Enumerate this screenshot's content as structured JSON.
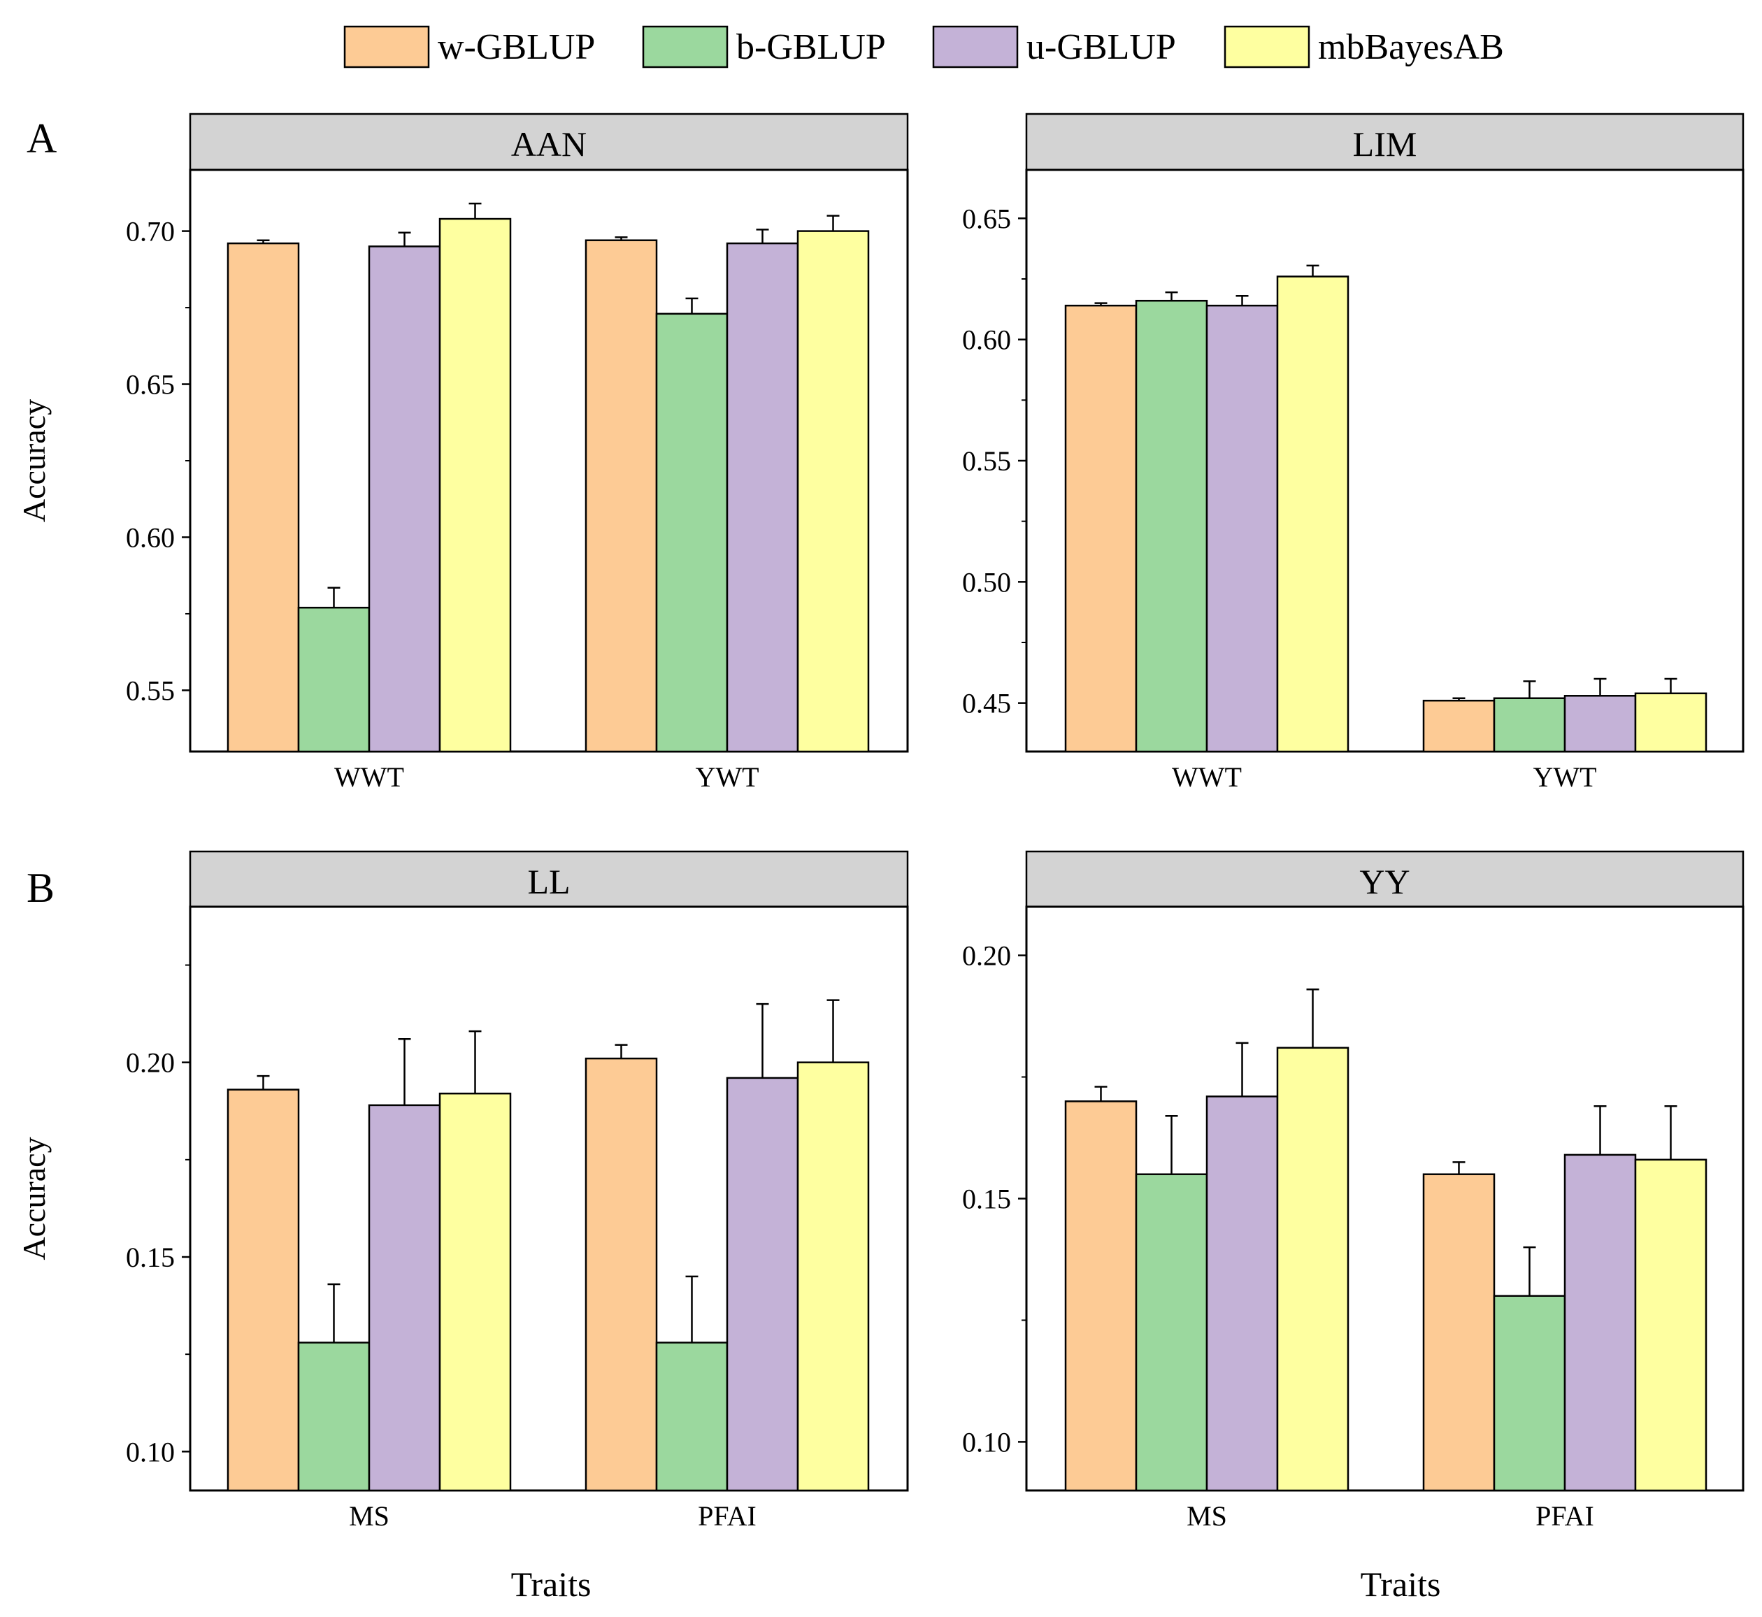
{
  "colors": {
    "w-GBLUP": "#FDCB95",
    "b-GBLUP": "#9BD89E",
    "u-GBLUP": "#C4B2D7",
    "mbBayesAB": "#FEFFA0",
    "strip": "#D3D3D3"
  },
  "legend": [
    "w-GBLUP",
    "b-GBLUP",
    "u-GBLUP",
    "mbBayesAB"
  ],
  "panel_letters": [
    "A",
    "B"
  ],
  "xlabel": "Traits",
  "chart_data": [
    {
      "type": "bar",
      "panel": "A",
      "title": "AAN",
      "ylabel": "Accuracy",
      "ylim": [
        0.53,
        0.72
      ],
      "yticks": [
        0.55,
        0.6,
        0.65,
        0.7
      ],
      "ytick_labels": [
        "0.55",
        "0.60",
        "0.65",
        "0.70"
      ],
      "categories": [
        "WWT",
        "YWT"
      ],
      "series": [
        {
          "name": "w-GBLUP",
          "values": [
            0.696,
            0.697
          ],
          "errors": [
            0.001,
            0.001
          ]
        },
        {
          "name": "b-GBLUP",
          "values": [
            0.577,
            0.673
          ],
          "errors": [
            0.0065,
            0.005
          ]
        },
        {
          "name": "u-GBLUP",
          "values": [
            0.695,
            0.696
          ],
          "errors": [
            0.0045,
            0.0045
          ]
        },
        {
          "name": "mbBayesAB",
          "values": [
            0.704,
            0.7
          ],
          "errors": [
            0.005,
            0.005
          ]
        }
      ]
    },
    {
      "type": "bar",
      "panel": "A",
      "title": "LIM",
      "ylabel": "",
      "ylim": [
        0.43,
        0.67
      ],
      "yticks": [
        0.45,
        0.5,
        0.55,
        0.6,
        0.65
      ],
      "ytick_labels": [
        "0.45",
        "0.50",
        "0.55",
        "0.60",
        "0.65"
      ],
      "categories": [
        "WWT",
        "YWT"
      ],
      "series": [
        {
          "name": "w-GBLUP",
          "values": [
            0.614,
            0.451
          ],
          "errors": [
            0.001,
            0.001
          ]
        },
        {
          "name": "b-GBLUP",
          "values": [
            0.616,
            0.452
          ],
          "errors": [
            0.0035,
            0.007
          ]
        },
        {
          "name": "u-GBLUP",
          "values": [
            0.614,
            0.453
          ],
          "errors": [
            0.004,
            0.007
          ]
        },
        {
          "name": "mbBayesAB",
          "values": [
            0.626,
            0.454
          ],
          "errors": [
            0.0045,
            0.006
          ]
        }
      ]
    },
    {
      "type": "bar",
      "panel": "B",
      "title": "LL",
      "ylabel": "Accuracy",
      "ylim": [
        0.09,
        0.24
      ],
      "yticks": [
        0.1,
        0.15,
        0.2
      ],
      "ytick_labels": [
        "0.10",
        "0.15",
        "0.20"
      ],
      "categories": [
        "MS",
        "PFAI"
      ],
      "series": [
        {
          "name": "w-GBLUP",
          "values": [
            0.193,
            0.201
          ],
          "errors": [
            0.0035,
            0.0035
          ]
        },
        {
          "name": "b-GBLUP",
          "values": [
            0.128,
            0.128
          ],
          "errors": [
            0.015,
            0.017
          ]
        },
        {
          "name": "u-GBLUP",
          "values": [
            0.189,
            0.196
          ],
          "errors": [
            0.017,
            0.019
          ]
        },
        {
          "name": "mbBayesAB",
          "values": [
            0.192,
            0.2
          ],
          "errors": [
            0.016,
            0.016
          ]
        }
      ]
    },
    {
      "type": "bar",
      "panel": "B",
      "title": "YY",
      "ylabel": "",
      "ylim": [
        0.09,
        0.21
      ],
      "yticks": [
        0.1,
        0.15,
        0.2
      ],
      "ytick_labels": [
        "0.10",
        "0.15",
        "0.20"
      ],
      "categories": [
        "MS",
        "PFAI"
      ],
      "series": [
        {
          "name": "w-GBLUP",
          "values": [
            0.17,
            0.155
          ],
          "errors": [
            0.003,
            0.0025
          ]
        },
        {
          "name": "b-GBLUP",
          "values": [
            0.155,
            0.13
          ],
          "errors": [
            0.012,
            0.01
          ]
        },
        {
          "name": "u-GBLUP",
          "values": [
            0.171,
            0.159
          ],
          "errors": [
            0.011,
            0.01
          ]
        },
        {
          "name": "mbBayesAB",
          "values": [
            0.181,
            0.158
          ],
          "errors": [
            0.012,
            0.011
          ]
        }
      ]
    }
  ]
}
